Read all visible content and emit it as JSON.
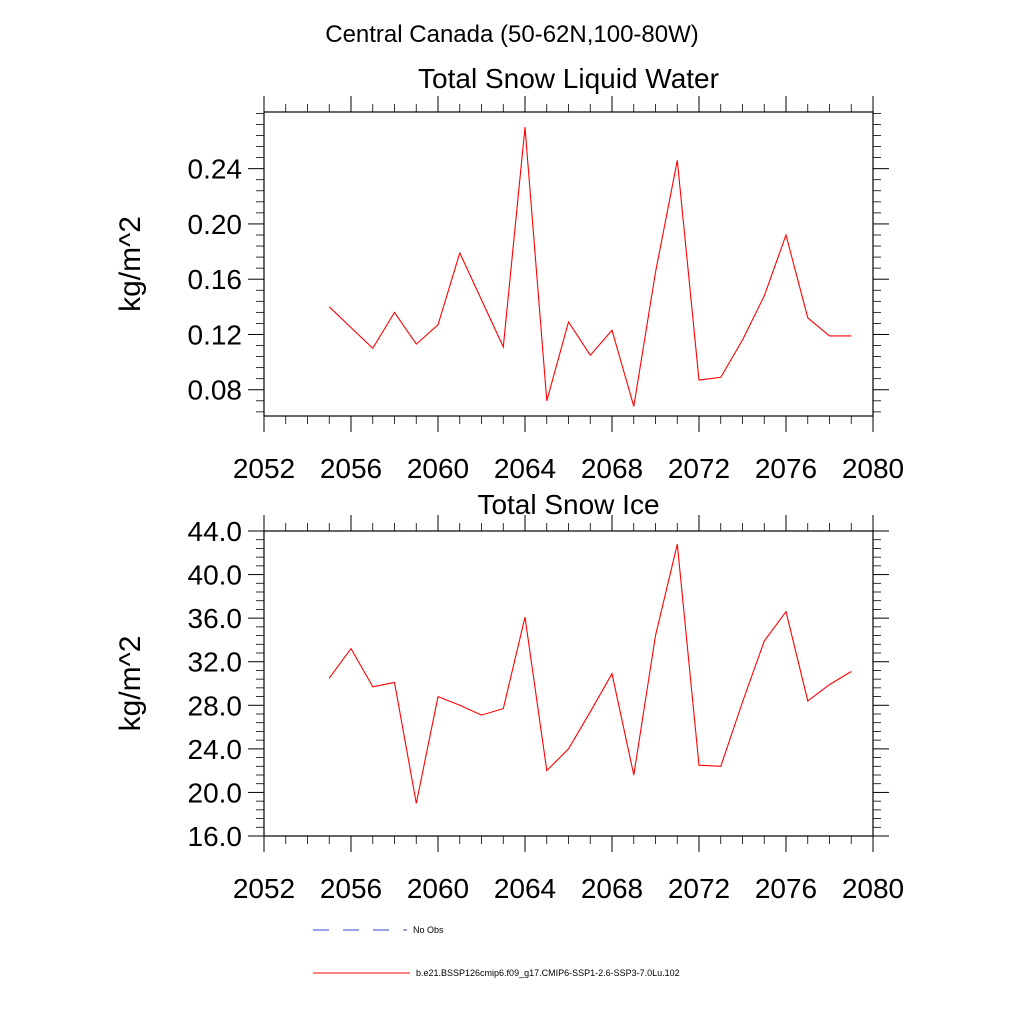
{
  "page_title": "Central Canada (50-62N,100-80W)",
  "legend": {
    "items": [
      {
        "label": "No Obs",
        "color": "#3344cc",
        "dash": true
      },
      {
        "label": "b.e21.BSSP126cmip6.f09_g17.CMIP6-SSP1-2.6-SSP3-7.0Lu.102",
        "color": "#ff0000",
        "dash": false
      }
    ]
  },
  "chart_data": [
    {
      "type": "line",
      "title": "Total Snow Liquid Water",
      "xlabel": "",
      "ylabel": "kg/m^2",
      "xlim": [
        2052,
        2080
      ],
      "ylim": [
        0.061,
        0.281
      ],
      "xticks": [
        2052,
        2056,
        2060,
        2064,
        2068,
        2072,
        2076,
        2080
      ],
      "yticks": [
        0.08,
        0.12,
        0.16,
        0.2,
        0.24
      ],
      "ytick_labels": [
        "0.08",
        "0.12",
        "0.16",
        "0.20",
        "0.24"
      ],
      "color": "#ff0000",
      "x": [
        2055,
        2056,
        2057,
        2058,
        2059,
        2060,
        2061,
        2062,
        2063,
        2064,
        2065,
        2066,
        2067,
        2068,
        2069,
        2070,
        2071,
        2072,
        2073,
        2074,
        2075,
        2076,
        2077,
        2078,
        2079
      ],
      "y": [
        0.14,
        0.125,
        0.11,
        0.136,
        0.113,
        0.127,
        0.179,
        0.145,
        0.111,
        0.27,
        0.072,
        0.129,
        0.105,
        0.123,
        0.068,
        0.165,
        0.246,
        0.087,
        0.089,
        0.116,
        0.148,
        0.192,
        0.132,
        0.119,
        0.119
      ]
    },
    {
      "type": "line",
      "title": "Total Snow Ice",
      "xlabel": "",
      "ylabel": "kg/m^2",
      "xlim": [
        2052,
        2080
      ],
      "ylim": [
        16.0,
        44.0
      ],
      "xticks": [
        2052,
        2056,
        2060,
        2064,
        2068,
        2072,
        2076,
        2080
      ],
      "yticks": [
        16,
        20,
        24,
        28,
        32,
        36,
        40,
        44
      ],
      "ytick_labels": [
        "16.0",
        "20.0",
        "24.0",
        "28.0",
        "32.0",
        "36.0",
        "40.0",
        "44.0"
      ],
      "color": "#ff0000",
      "x": [
        2055,
        2056,
        2057,
        2058,
        2059,
        2060,
        2061,
        2062,
        2063,
        2064,
        2065,
        2066,
        2067,
        2068,
        2069,
        2070,
        2071,
        2072,
        2073,
        2074,
        2075,
        2076,
        2077,
        2078,
        2079
      ],
      "y": [
        30.5,
        33.2,
        29.7,
        30.1,
        19.0,
        28.8,
        28.0,
        27.1,
        27.7,
        36.1,
        22.0,
        24.0,
        27.4,
        30.9,
        21.6,
        34.4,
        42.8,
        22.5,
        22.4,
        28.3,
        33.9,
        36.6,
        28.4,
        29.9,
        31.1
      ]
    }
  ]
}
